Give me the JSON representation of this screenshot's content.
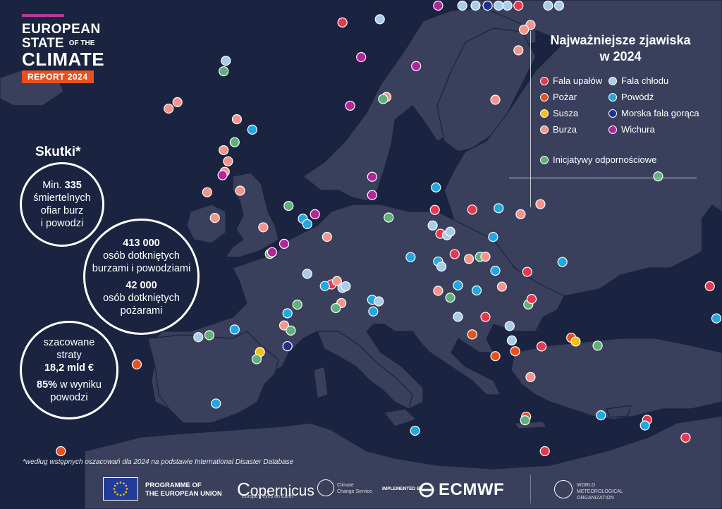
{
  "logo": {
    "line1": "EUROPEAN",
    "line2a": "STATE",
    "line2b": "OF THE",
    "line3": "CLIMATE",
    "badge": "REPORT 2024"
  },
  "impacts": {
    "title": "Skutki*",
    "c1": {
      "a": "Min. ",
      "b": "335",
      "c": "śmiertelnych",
      "d": "ofiar burz",
      "e": "i powodzi"
    },
    "c2": {
      "a": "413 000",
      "b": "osób dotkniętych",
      "c": "burzami i powodziami",
      "d": "42 000",
      "e": "osób dotkniętych",
      "f": "pożarami"
    },
    "c3": {
      "a": "szacowane",
      "b": "straty",
      "c": "18,2 mld €",
      "d": "85%",
      "e": " w wyniku",
      "f": "powodzi"
    }
  },
  "legend": {
    "title1": "Najważniejsze zjawiska",
    "title2": "w 2024",
    "items": [
      {
        "label": "Fala upałów",
        "color": "#e8384f"
      },
      {
        "label": "Fala chłodu",
        "color": "#a9cde8"
      },
      {
        "label": "Pożar",
        "color": "#e8511d"
      },
      {
        "label": "Powódź",
        "color": "#22a7e0"
      },
      {
        "label": "Susza",
        "color": "#f2c014"
      },
      {
        "label": "Morska fala gorąca",
        "color": "#1f2f8f"
      },
      {
        "label": "Burza",
        "color": "#f4948c"
      },
      {
        "label": "Wichura",
        "color": "#b3269b"
      },
      {
        "label": "Inicjatywy odpornościowe",
        "color": "#5fb07a"
      }
    ]
  },
  "footnote": "*według wstępnych oszacowań dla 2024 na podstawie International Disaster Database",
  "footer": {
    "eu1": "PROGRAMME OF",
    "eu2": "THE EUROPEAN UNION",
    "copernicus": "opernicus",
    "copernicus_c": "C",
    "copernicus_sub": "Europe's eyes on Earth",
    "ccs1": "Climate",
    "ccs2": "Change Service",
    "implemented": "IMPLEMENTED BY",
    "ecmwf": "ECMWF",
    "wmo1": "WORLD",
    "wmo2": "METEOROLOGICAL",
    "wmo3": "ORGANIZATION"
  },
  "markers": [
    {
      "t": "cold",
      "lon": 22,
      "lat": 69.8
    },
    {
      "t": "cold",
      "lon": 22.8,
      "lat": 70.3
    },
    {
      "t": "cold",
      "lon": 27.5,
      "lat": 69.5
    },
    {
      "t": "cold",
      "lon": 19.9,
      "lat": 68.6
    },
    {
      "t": "cold",
      "lon": 18.7,
      "lat": 68.1
    },
    {
      "t": "wind",
      "lon": 16.5,
      "lat": 67.3
    },
    {
      "t": "cold",
      "lon": 11.2,
      "lat": 62.3
    },
    {
      "t": "heat",
      "lon": 7.8,
      "lat": 62.0
    },
    {
      "t": "mhw",
      "lon": 21.0,
      "lat": 62.6
    },
    {
      "t": "heat",
      "lon": 23.8,
      "lat": 61.9
    },
    {
      "t": "cold",
      "lon": 26.5,
      "lat": 62.5
    },
    {
      "t": "storm",
      "lon": 24.9,
      "lat": 60.6
    },
    {
      "t": "storm",
      "lon": 24.3,
      "lat": 60.4
    },
    {
      "t": "storm",
      "lon": 23.8,
      "lat": 59.3
    },
    {
      "t": "wind",
      "lon": 9.5,
      "lat": 60.1
    },
    {
      "t": "wind",
      "lon": 14.5,
      "lat": 59.2
    },
    {
      "t": "storm",
      "lon": 11.8,
      "lat": 57.6
    },
    {
      "t": "res",
      "lon": 11.5,
      "lat": 57.5
    },
    {
      "t": "wind",
      "lon": 8.5,
      "lat": 57.1
    },
    {
      "t": "storm",
      "lon": 21.7,
      "lat": 56.7
    },
    {
      "t": "res",
      "lon": -3.0,
      "lat": 58.2
    },
    {
      "t": "cold",
      "lon": -2.8,
      "lat": 58.8
    },
    {
      "t": "storm",
      "lon": -7.2,
      "lat": 56.2
    },
    {
      "t": "storm",
      "lon": -8.0,
      "lat": 55.8
    },
    {
      "t": "storm",
      "lon": -1.8,
      "lat": 55.6
    },
    {
      "t": "flood",
      "lon": -0.4,
      "lat": 55.1
    },
    {
      "t": "res",
      "lon": -2.0,
      "lat": 54.3
    },
    {
      "t": "storm",
      "lon": -3.0,
      "lat": 53.8
    },
    {
      "t": "storm",
      "lon": -2.6,
      "lat": 53.2
    },
    {
      "t": "storm",
      "lon": -2.9,
      "lat": 52.6
    },
    {
      "t": "wind",
      "lon": -3.1,
      "lat": 52.4
    },
    {
      "t": "storm",
      "lon": -4.5,
      "lat": 51.4
    },
    {
      "t": "storm",
      "lon": -1.5,
      "lat": 51.6
    },
    {
      "t": "storm",
      "lon": -3.8,
      "lat": 50.0
    },
    {
      "t": "res",
      "lon": 2.9,
      "lat": 50.9
    },
    {
      "t": "flood",
      "lon": 4.2,
      "lat": 50.2
    },
    {
      "t": "flood",
      "lon": 4.6,
      "lat": 49.9
    },
    {
      "t": "wind",
      "lon": 5.3,
      "lat": 50.5
    },
    {
      "t": "wind",
      "lon": 10.5,
      "lat": 52.9
    },
    {
      "t": "wind",
      "lon": 10.5,
      "lat": 51.8
    },
    {
      "t": "storm",
      "lon": 0.6,
      "lat": 49.6
    },
    {
      "t": "wind",
      "lon": 2.5,
      "lat": 48.7
    },
    {
      "t": "res",
      "lon": 1.2,
      "lat": 48.1
    },
    {
      "t": "wind",
      "lon": 1.4,
      "lat": 48.2
    },
    {
      "t": "storm",
      "lon": 6.4,
      "lat": 49.2
    },
    {
      "t": "res",
      "lon": 12.0,
      "lat": 50.4
    },
    {
      "t": "flood",
      "lon": 16.3,
      "lat": 52.0
    },
    {
      "t": "heat",
      "lon": 16.2,
      "lat": 50.7
    },
    {
      "t": "cold",
      "lon": 16.0,
      "lat": 49.8
    },
    {
      "t": "heat",
      "lon": 16.7,
      "lat": 49.3
    },
    {
      "t": "cold",
      "lon": 17.3,
      "lat": 49.2
    },
    {
      "t": "cold",
      "lon": 17.6,
      "lat": 49.4
    },
    {
      "t": "heat",
      "lon": 19.6,
      "lat": 50.6
    },
    {
      "t": "flood",
      "lon": 22.0,
      "lat": 50.6
    },
    {
      "t": "storm",
      "lon": 24.0,
      "lat": 50.2
    },
    {
      "t": "storm",
      "lon": 25.8,
      "lat": 50.7
    },
    {
      "t": "heat",
      "lon": 18.0,
      "lat": 48.1
    },
    {
      "t": "flood",
      "lon": 21.5,
      "lat": 49.0
    },
    {
      "t": "storm",
      "lon": 19.3,
      "lat": 47.8
    },
    {
      "t": "res",
      "lon": 20.3,
      "lat": 47.9
    },
    {
      "t": "storm",
      "lon": 20.8,
      "lat": 47.9
    },
    {
      "t": "flood",
      "lon": 16.5,
      "lat": 47.7
    },
    {
      "t": "cold",
      "lon": 16.8,
      "lat": 47.4
    },
    {
      "t": "flood",
      "lon": 14.0,
      "lat": 48.0
    },
    {
      "t": "flood",
      "lon": 21.7,
      "lat": 47.1
    },
    {
      "t": "heat",
      "lon": 24.6,
      "lat": 47.0
    },
    {
      "t": "flood",
      "lon": 27.8,
      "lat": 47.5
    },
    {
      "t": "res",
      "lon": 36.5,
      "lat": 51.8
    },
    {
      "t": "heat",
      "lon": 41.2,
      "lat": 46.1
    },
    {
      "t": "flood",
      "lon": 48.5,
      "lat": 44.5
    },
    {
      "t": "cold",
      "lon": 4.6,
      "lat": 47.0
    },
    {
      "t": "heat",
      "lon": 6.8,
      "lat": 46.4
    },
    {
      "t": "storm",
      "lon": 7.3,
      "lat": 46.6
    },
    {
      "t": "flood",
      "lon": 6.2,
      "lat": 46.3
    },
    {
      "t": "cold",
      "lon": 7.8,
      "lat": 46.2
    },
    {
      "t": "cold",
      "lon": 8.1,
      "lat": 46.3
    },
    {
      "t": "storm",
      "lon": 7.7,
      "lat": 45.3
    },
    {
      "t": "res",
      "lon": 7.2,
      "lat": 45.0
    },
    {
      "t": "flood",
      "lon": 10.5,
      "lat": 45.5
    },
    {
      "t": "cold",
      "lon": 11.1,
      "lat": 45.4
    },
    {
      "t": "flood",
      "lon": 10.6,
      "lat": 44.8
    },
    {
      "t": "res",
      "lon": 3.7,
      "lat": 45.2
    },
    {
      "t": "flood",
      "lon": 2.8,
      "lat": 44.7
    },
    {
      "t": "storm",
      "lon": 2.5,
      "lat": 44.0
    },
    {
      "t": "res",
      "lon": 3.1,
      "lat": 43.7
    },
    {
      "t": "mhw",
      "lon": 2.8,
      "lat": 42.8
    },
    {
      "t": "drought",
      "lon": 0.3,
      "lat": 42.5
    },
    {
      "t": "res",
      "lon": 0.0,
      "lat": 42.1
    },
    {
      "t": "flood",
      "lon": -2.0,
      "lat": 43.8
    },
    {
      "t": "cold",
      "lon": -5.3,
      "lat": 43.4
    },
    {
      "t": "res",
      "lon": -4.3,
      "lat": 43.5
    },
    {
      "t": "fire",
      "lon": -10.9,
      "lat": 42.0
    },
    {
      "t": "flood",
      "lon": -3.7,
      "lat": 39.7
    },
    {
      "t": "fire",
      "lon": -17.8,
      "lat": 34.1
    },
    {
      "t": "flood",
      "lon": 14.4,
      "lat": 37.8
    },
    {
      "t": "storm",
      "lon": 16.5,
      "lat": 46.0
    },
    {
      "t": "res",
      "lon": 17.6,
      "lat": 45.6
    },
    {
      "t": "flood",
      "lon": 18.3,
      "lat": 46.3
    },
    {
      "t": "flood",
      "lon": 20.0,
      "lat": 46.0
    },
    {
      "t": "storm",
      "lon": 22.3,
      "lat": 46.2
    },
    {
      "t": "res",
      "lon": 24.7,
      "lat": 45.2
    },
    {
      "t": "heat",
      "lon": 25.0,
      "lat": 45.5
    },
    {
      "t": "cold",
      "lon": 18.3,
      "lat": 44.5
    },
    {
      "t": "heat",
      "lon": 20.8,
      "lat": 44.5
    },
    {
      "t": "cold",
      "lon": 23.0,
      "lat": 44.0
    },
    {
      "t": "fire",
      "lon": 19.6,
      "lat": 43.5
    },
    {
      "t": "cold",
      "lon": 23.2,
      "lat": 43.2
    },
    {
      "t": "heat",
      "lon": 25.9,
      "lat": 42.9
    },
    {
      "t": "fire",
      "lon": 21.7,
      "lat": 42.3
    },
    {
      "t": "fire",
      "lon": 23.5,
      "lat": 42.6
    },
    {
      "t": "fire",
      "lon": 28.6,
      "lat": 43.4
    },
    {
      "t": "drought",
      "lon": 29.0,
      "lat": 43.2
    },
    {
      "t": "res",
      "lon": 31.0,
      "lat": 43.0
    },
    {
      "t": "storm",
      "lon": 24.9,
      "lat": 41.2
    },
    {
      "t": "fire",
      "lon": 24.5,
      "lat": 39.0
    },
    {
      "t": "res",
      "lon": 24.4,
      "lat": 38.8
    },
    {
      "t": "flood",
      "lon": 31.3,
      "lat": 39.3
    },
    {
      "t": "heat",
      "lon": 35.5,
      "lat": 39.2
    },
    {
      "t": "flood",
      "lon": 35.3,
      "lat": 38.9
    },
    {
      "t": "heat",
      "lon": 39.0,
      "lat": 38.4
    },
    {
      "t": "heat",
      "lon": 26.2,
      "lat": 36.7
    }
  ]
}
